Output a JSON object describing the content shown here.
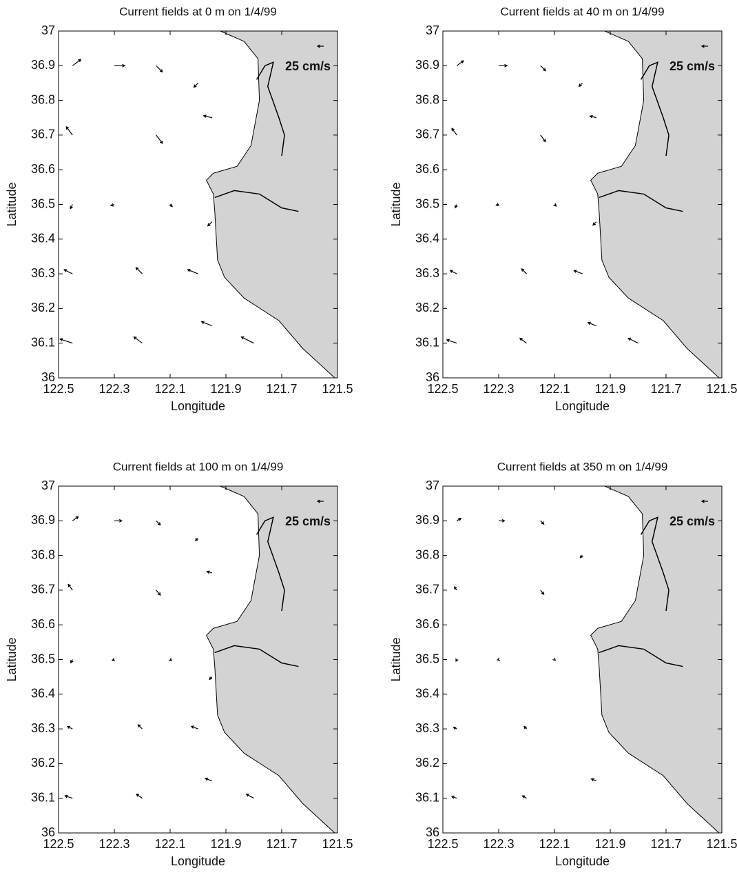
{
  "chart_data": [
    {
      "type": "quiver",
      "title": "Current fields at 0 m on 1/4/99",
      "x_label": "Longitude",
      "y_label": "Latitude",
      "annotation": {
        "value": 25,
        "label": "25 cm/s"
      },
      "xlim": [
        122.5,
        121.5
      ],
      "xticks": [
        122.5,
        122.3,
        122.1,
        121.9,
        121.7,
        121.5
      ],
      "ylim": [
        36,
        37
      ],
      "yticks": [
        36,
        36.1,
        36.2,
        36.3,
        36.4,
        36.5,
        36.6,
        36.7,
        36.8,
        36.9,
        37
      ],
      "x": [
        122.45,
        122.3,
        122.15,
        122.0,
        122.45,
        122.15,
        121.95,
        122.45,
        122.3,
        122.1,
        121.95,
        122.45,
        122.2,
        122.0,
        122.45,
        122.2,
        121.95,
        121.8
      ],
      "y": [
        36.9,
        36.9,
        36.9,
        36.85,
        36.7,
        36.7,
        36.75,
        36.5,
        36.5,
        36.5,
        36.45,
        36.3,
        36.3,
        36.3,
        36.1,
        36.1,
        36.15,
        36.1
      ],
      "u": [
        20,
        25,
        15,
        -10,
        -15,
        15,
        -20,
        -5,
        -8,
        5,
        -10,
        -20,
        -15,
        -25,
        -30,
        -20,
        -25,
        -30
      ],
      "v": [
        15,
        0,
        -15,
        -10,
        20,
        -20,
        5,
        -10,
        -3,
        -5,
        -10,
        10,
        15,
        10,
        10,
        15,
        10,
        15
      ]
    },
    {
      "type": "quiver",
      "title": "Current fields at 40 m on 1/4/99",
      "x_label": "Longitude",
      "y_label": "Latitude",
      "annotation": {
        "value": 25,
        "label": "25 cm/s"
      },
      "xlim": [
        122.5,
        121.5
      ],
      "xticks": [
        122.5,
        122.3,
        122.1,
        121.9,
        121.7,
        121.5
      ],
      "ylim": [
        36,
        37
      ],
      "yticks": [
        36,
        36.1,
        36.2,
        36.3,
        36.4,
        36.5,
        36.6,
        36.7,
        36.8,
        36.9,
        37
      ],
      "x": [
        122.45,
        122.3,
        122.15,
        122.0,
        122.45,
        122.15,
        121.95,
        122.45,
        122.3,
        122.1,
        121.95,
        122.45,
        122.2,
        122.0,
        122.45,
        122.2,
        121.95,
        121.8
      ],
      "y": [
        36.9,
        36.9,
        36.9,
        36.85,
        36.7,
        36.7,
        36.75,
        36.5,
        36.5,
        36.5,
        36.45,
        36.3,
        36.3,
        36.3,
        36.1,
        36.1,
        36.15,
        36.1
      ],
      "u": [
        16,
        20,
        12,
        -8,
        -12,
        12,
        -15,
        -4,
        -6,
        4,
        -8,
        -16,
        -12,
        -20,
        -24,
        -16,
        -20,
        -24
      ],
      "v": [
        12,
        0,
        -12,
        -8,
        16,
        -16,
        4,
        -8,
        -2,
        -4,
        -8,
        8,
        12,
        8,
        8,
        12,
        8,
        12
      ]
    },
    {
      "type": "quiver",
      "title": "Current fields at 100 m on 1/4/99",
      "x_label": "Longitude",
      "y_label": "Latitude",
      "annotation": {
        "value": 25,
        "label": "25 cm/s"
      },
      "xlim": [
        122.5,
        121.5
      ],
      "xticks": [
        122.5,
        122.3,
        122.1,
        121.9,
        121.7,
        121.5
      ],
      "ylim": [
        36,
        37
      ],
      "yticks": [
        36,
        36.1,
        36.2,
        36.3,
        36.4,
        36.5,
        36.6,
        36.7,
        36.8,
        36.9,
        37
      ],
      "x": [
        122.45,
        122.3,
        122.15,
        122.0,
        122.45,
        122.15,
        121.95,
        122.45,
        122.3,
        122.1,
        121.95,
        122.45,
        122.2,
        122.0,
        122.45,
        122.2,
        121.95,
        121.8
      ],
      "y": [
        36.9,
        36.9,
        36.9,
        36.85,
        36.7,
        36.7,
        36.75,
        36.5,
        36.5,
        36.5,
        36.45,
        36.3,
        36.3,
        36.3,
        36.1,
        36.1,
        36.15,
        36.1
      ],
      "u": [
        14,
        18,
        10,
        -6,
        -10,
        10,
        -12,
        -4,
        -5,
        3,
        -6,
        -12,
        -10,
        -16,
        -18,
        -14,
        -16,
        -18
      ],
      "v": [
        10,
        0,
        -10,
        -6,
        14,
        -12,
        3,
        -8,
        -2,
        -3,
        -6,
        6,
        10,
        6,
        6,
        10,
        6,
        10
      ]
    },
    {
      "type": "quiver",
      "title": "Current fields at 350 m on 1/4/99",
      "x_label": "Longitude",
      "y_label": "Latitude",
      "annotation": {
        "value": 25,
        "label": "25 cm/s"
      },
      "xlim": [
        122.5,
        121.5
      ],
      "xticks": [
        122.5,
        122.3,
        122.1,
        121.9,
        121.7,
        121.5
      ],
      "ylim": [
        36,
        37
      ],
      "yticks": [
        36,
        36.1,
        36.2,
        36.3,
        36.4,
        36.5,
        36.6,
        36.7,
        36.8,
        36.9,
        37
      ],
      "x": [
        122.45,
        122.3,
        122.15,
        122.0,
        122.45,
        122.15,
        122.45,
        122.3,
        122.1,
        122.45,
        122.2,
        122.45,
        122.2,
        121.95
      ],
      "y": [
        36.9,
        36.9,
        36.9,
        36.8,
        36.7,
        36.7,
        36.5,
        36.5,
        36.5,
        36.3,
        36.3,
        36.1,
        36.1,
        36.15
      ],
      "u": [
        10,
        14,
        8,
        -5,
        -6,
        8,
        -2,
        -3,
        2,
        -8,
        -6,
        -12,
        -10,
        -12
      ],
      "v": [
        6,
        0,
        -8,
        -5,
        8,
        -10,
        -4,
        -1,
        -2,
        4,
        6,
        4,
        6,
        5
      ]
    }
  ]
}
